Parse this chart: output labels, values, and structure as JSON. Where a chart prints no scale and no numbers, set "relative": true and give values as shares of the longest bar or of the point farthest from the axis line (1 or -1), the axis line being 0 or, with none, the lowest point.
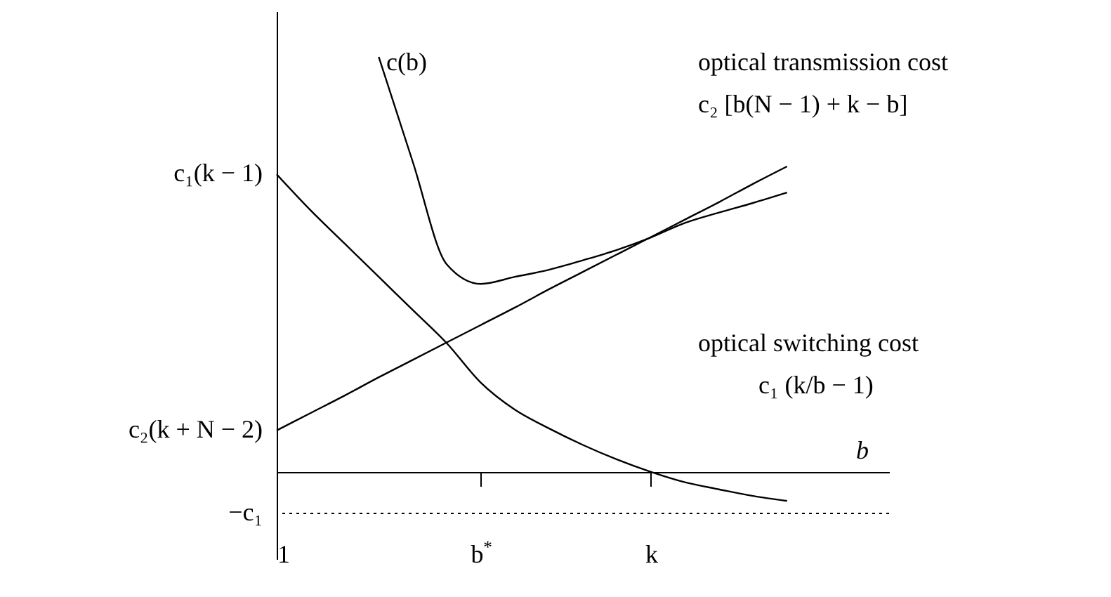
{
  "chart_data": {
    "type": "line",
    "relative": true,
    "xlabel": "b",
    "categories": [
      "1",
      null,
      null,
      null,
      null,
      null,
      "b$^{*}$",
      null,
      null,
      null,
      null,
      "k",
      null,
      null,
      null,
      null,
      null,
      null,
      null
    ],
    "series": [
      {
        "color": "#000000",
        "values": [
          null,
          null,
          null,
          1.0,
          0.747,
          0.5,
          0.453,
          0.47,
          0.487,
          0.51,
          0.535,
          0.565,
          0.6,
          0.625,
          0.648,
          0.673,
          null,
          null,
          null
        ]
      },
      {
        "color": "#000000",
        "values": [
          0.1,
          0.142,
          0.184,
          0.228,
          0.27,
          0.312,
          0.354,
          0.396,
          0.44,
          0.482,
          0.524,
          0.566,
          0.608,
          0.65,
          0.694,
          0.736,
          null,
          null,
          null
        ]
      },
      {
        "color": "#000000",
        "values": [
          0.717,
          0.63,
          0.55,
          0.47,
          0.39,
          0.31,
          0.215,
          0.15,
          0.105,
          0.065,
          0.03,
          0,
          -0.025,
          -0.042,
          -0.058,
          -0.07,
          null,
          null,
          null
        ]
      }
    ],
    "ref_lines": [
      {
        "axis": "y",
        "value": -0.1,
        "label": "−c₁",
        "line_style": "dotted",
        "color": "#000000"
      }
    ],
    "annotations": [
      {
        "text": "c₁(k − 1)",
        "x": "1",
        "y": 0.717
      },
      {
        "text": "c₂(k + N − 2)",
        "x": "1",
        "y": 0.1
      },
      "c(b)",
      "optical transmission cost",
      "c₂ [b(N − 1) + k − b]",
      "optical switching cost",
      "c₁ (k/b − 1)"
    ],
    "legend": false,
    "grid": false,
    "marker": "none",
    "line_style": "solid"
  }
}
